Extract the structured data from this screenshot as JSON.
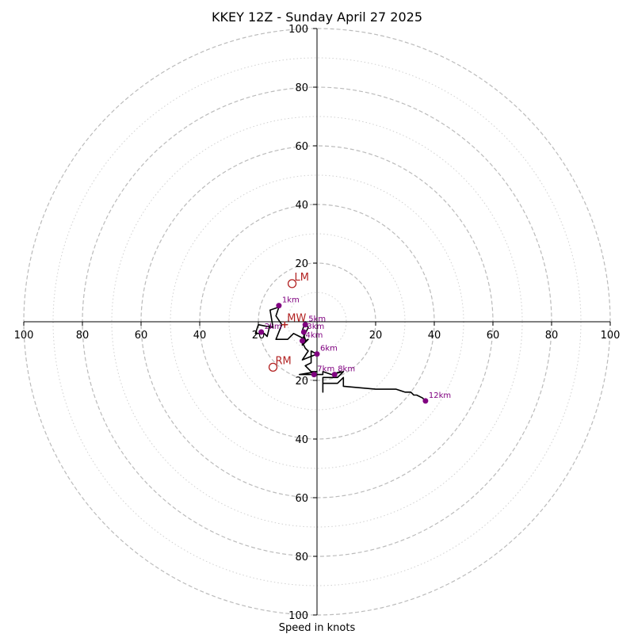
{
  "chart_data": {
    "type": "scatter",
    "title": "KKEY 12Z - Sunday April 27 2025",
    "xlabel": "Speed in knots",
    "ylabel": "",
    "xlim": [
      -100,
      100
    ],
    "ylim": [
      -100,
      100
    ],
    "ring_major": [
      20,
      40,
      60,
      80,
      100
    ],
    "ring_minor": [
      10,
      30,
      50,
      70,
      90
    ],
    "tick_labels_x": [
      "100",
      "80",
      "60",
      "40",
      "20",
      "",
      "20",
      "40",
      "60",
      "80",
      "100"
    ],
    "tick_labels_y": [
      "100",
      "80",
      "60",
      "40",
      "20",
      "",
      "20",
      "40",
      "60",
      "80",
      "100"
    ],
    "grid": true,
    "colors": {
      "trace": "#000000",
      "height_marker": "#800080",
      "storm_motion": "#b22222",
      "ring": "#bbbbbb"
    },
    "trace": [
      [
        -16,
        -1
      ],
      [
        -17,
        -5
      ],
      [
        -18,
        -4
      ],
      [
        -21,
        -4
      ],
      [
        -20,
        -1
      ],
      [
        -15,
        -2
      ],
      [
        -16,
        4
      ],
      [
        -13,
        5
      ],
      [
        -14,
        2
      ],
      [
        -12,
        -1
      ],
      [
        -14,
        -6
      ],
      [
        -10,
        -6
      ],
      [
        -8,
        -4
      ],
      [
        -6,
        -5
      ],
      [
        -4,
        -6
      ],
      [
        -5,
        -3
      ],
      [
        -4,
        0
      ],
      [
        -3,
        -2
      ],
      [
        -5,
        -6
      ],
      [
        -5,
        -8
      ],
      [
        -3,
        -6
      ],
      [
        -5,
        -7
      ],
      [
        -4,
        -9
      ],
      [
        -3,
        -10
      ],
      [
        -5,
        -13
      ],
      [
        0,
        -11
      ],
      [
        -2,
        -10
      ],
      [
        -2,
        -14
      ],
      [
        -4,
        -15
      ],
      [
        -2,
        -17
      ],
      [
        0,
        -17
      ],
      [
        -6,
        -18
      ],
      [
        2,
        -18
      ],
      [
        2,
        -17
      ],
      [
        5,
        -18
      ],
      [
        8,
        -17
      ],
      [
        5,
        -18
      ],
      [
        9,
        -17
      ],
      [
        7,
        -19
      ],
      [
        2,
        -19
      ],
      [
        2,
        -24
      ],
      [
        2,
        -21
      ],
      [
        7,
        -21
      ],
      [
        9,
        -19
      ],
      [
        9,
        -22
      ],
      [
        20,
        -23
      ],
      [
        27,
        -23
      ],
      [
        30,
        -24
      ],
      [
        32,
        -24
      ],
      [
        33,
        -25
      ],
      [
        34,
        -25
      ],
      [
        36,
        -26
      ],
      [
        37,
        -27
      ]
    ],
    "height_markers": [
      {
        "label": "1km",
        "x": -13,
        "y": 5.5
      },
      {
        "label": "2km",
        "x": -19,
        "y": -3.5
      },
      {
        "label": "3km",
        "x": -4.5,
        "y": -3.5
      },
      {
        "label": "4km",
        "x": -5,
        "y": -6.5
      },
      {
        "label": "5km",
        "x": -4,
        "y": -1
      },
      {
        "label": "6km",
        "x": 0,
        "y": -11
      },
      {
        "label": "7km",
        "x": -1,
        "y": -18
      },
      {
        "label": "8km",
        "x": 6,
        "y": -18
      },
      {
        "label": "12km",
        "x": 37,
        "y": -27
      }
    ],
    "storm_motion": [
      {
        "label": "LM",
        "x": -8.5,
        "y": 13
      },
      {
        "label": "RM",
        "x": -15,
        "y": -15.5
      },
      {
        "label": "MW",
        "x": -11,
        "y": -1
      }
    ]
  }
}
